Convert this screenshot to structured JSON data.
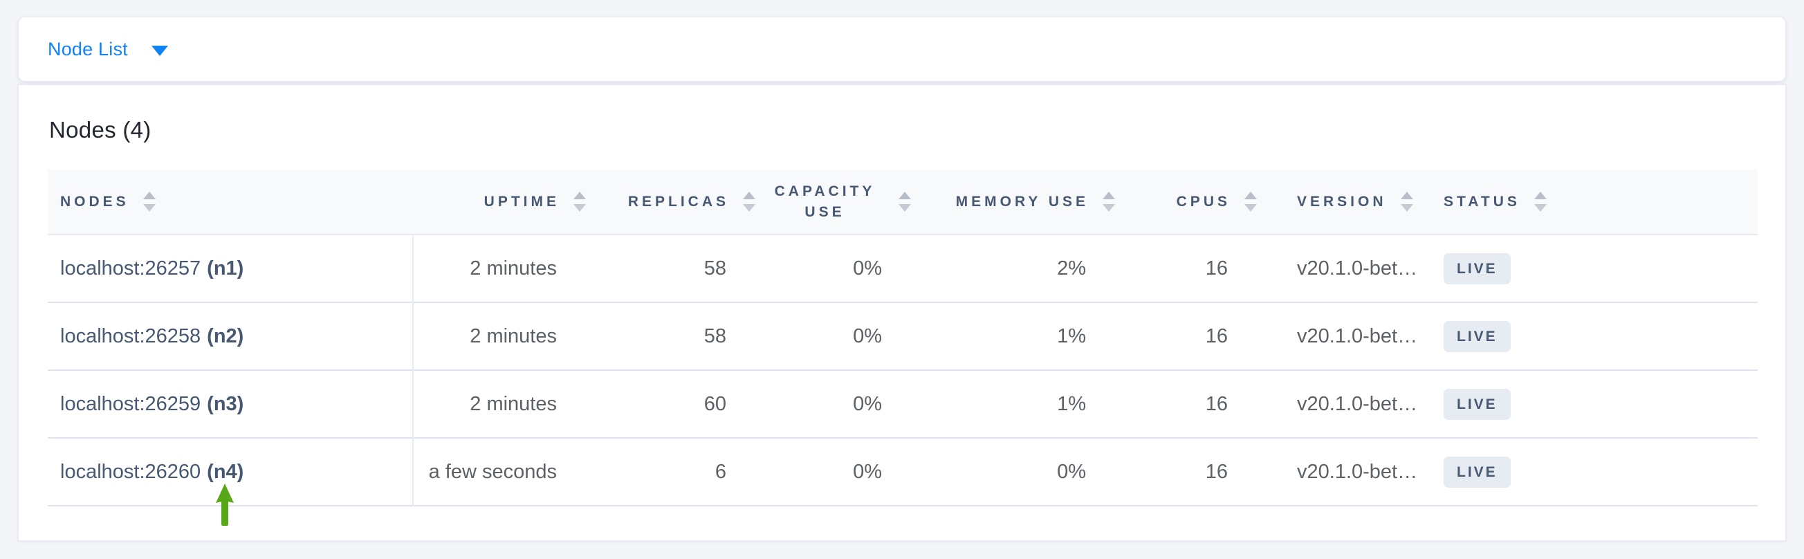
{
  "toolbar": {
    "view_label": "Node List"
  },
  "panel": {
    "title": "Nodes (4)"
  },
  "table": {
    "columns": [
      {
        "label": "NODES",
        "align": "left"
      },
      {
        "label": "UPTIME",
        "align": "right"
      },
      {
        "label": "REPLICAS",
        "align": "right"
      },
      {
        "label": "CAPACITY USE",
        "align": "right"
      },
      {
        "label": "MEMORY USE",
        "align": "right"
      },
      {
        "label": "CPUS",
        "align": "right"
      },
      {
        "label": "VERSION",
        "align": "left"
      },
      {
        "label": "STATUS",
        "align": "left"
      }
    ],
    "rows": [
      {
        "address": "localhost:26257",
        "node_id": "(n1)",
        "uptime": "2 minutes",
        "replicas": "58",
        "capacity_use": "0%",
        "memory_use": "2%",
        "cpus": "16",
        "version": "v20.1.0-bet…",
        "status": "LIVE"
      },
      {
        "address": "localhost:26258",
        "node_id": "(n2)",
        "uptime": "2 minutes",
        "replicas": "58",
        "capacity_use": "0%",
        "memory_use": "1%",
        "cpus": "16",
        "version": "v20.1.0-bet…",
        "status": "LIVE"
      },
      {
        "address": "localhost:26259",
        "node_id": "(n3)",
        "uptime": "2 minutes",
        "replicas": "60",
        "capacity_use": "0%",
        "memory_use": "1%",
        "cpus": "16",
        "version": "v20.1.0-bet…",
        "status": "LIVE"
      },
      {
        "address": "localhost:26260",
        "node_id": "(n4)",
        "uptime": "a few seconds",
        "replicas": "6",
        "capacity_use": "0%",
        "memory_use": "0%",
        "cpus": "16",
        "version": "v20.1.0-bet…",
        "status": "LIVE"
      }
    ]
  },
  "annotation": {
    "shape": "up-arrow",
    "color": "#57a717",
    "points_to": "localhost:26260 (n4)"
  },
  "colors": {
    "accent_blue": "#0f82f5",
    "header_text": "#475872",
    "badge_bg": "#e7ecf3",
    "page_bg": "#f3f5f9",
    "status_live": "LIVE"
  }
}
